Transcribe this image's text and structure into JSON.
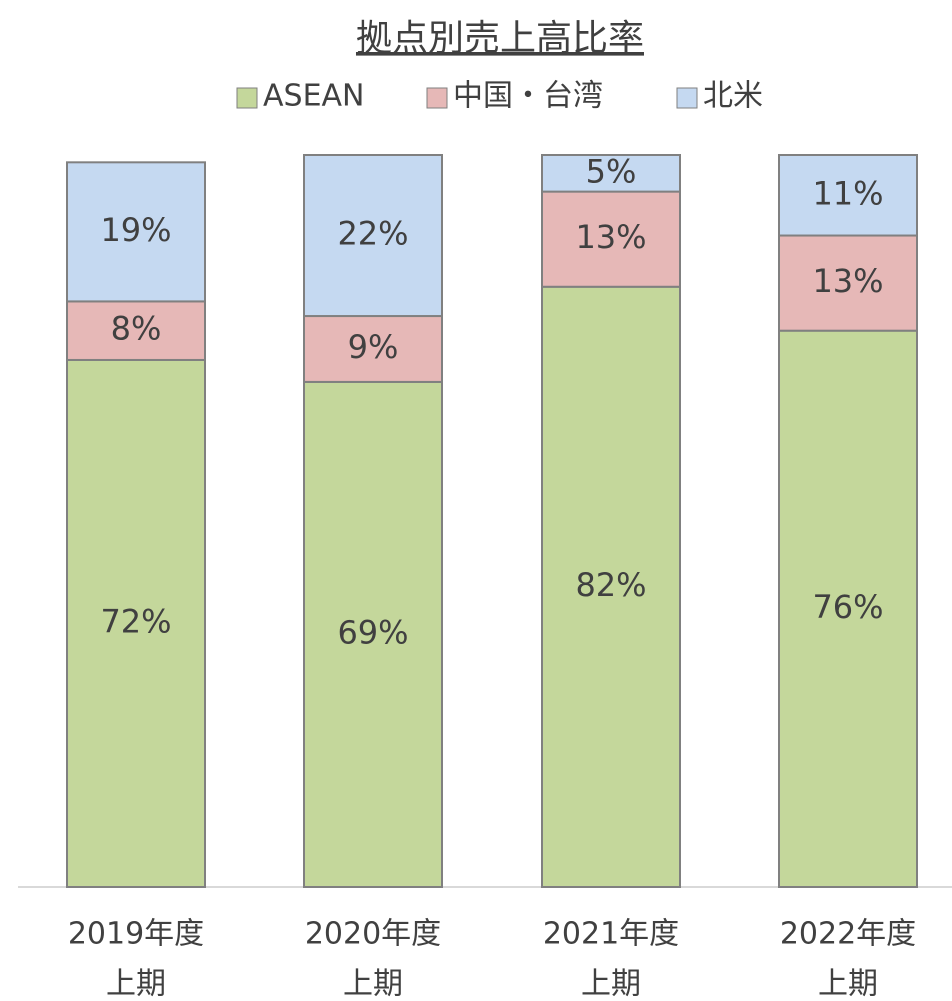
{
  "chart_data": {
    "type": "stacked_bar",
    "title": "拠点別売上高比率",
    "categories": [
      [
        "2019年度",
        "上期"
      ],
      [
        "2020年度",
        "上期"
      ],
      [
        "2021年度",
        "上期"
      ],
      [
        "2022年度",
        "上期"
      ]
    ],
    "series": [
      {
        "name": "ASEAN",
        "color": "#c4d79b",
        "values": [
          72,
          69,
          82,
          76
        ],
        "value_labels": [
          "72%",
          "69%",
          "82%",
          "76%"
        ]
      },
      {
        "name": "中国・台湾",
        "color": "#e6b8b7",
        "values": [
          8,
          9,
          13,
          13
        ],
        "value_labels": [
          "8%",
          "9%",
          "13%",
          "13%"
        ]
      },
      {
        "name": "北米",
        "color": "#c5d9f1",
        "values": [
          19,
          22,
          5,
          11
        ],
        "value_labels": [
          "19%",
          "22%",
          "5%",
          "11%"
        ]
      }
    ],
    "ylim": [
      0,
      100
    ],
    "legend": "top"
  }
}
